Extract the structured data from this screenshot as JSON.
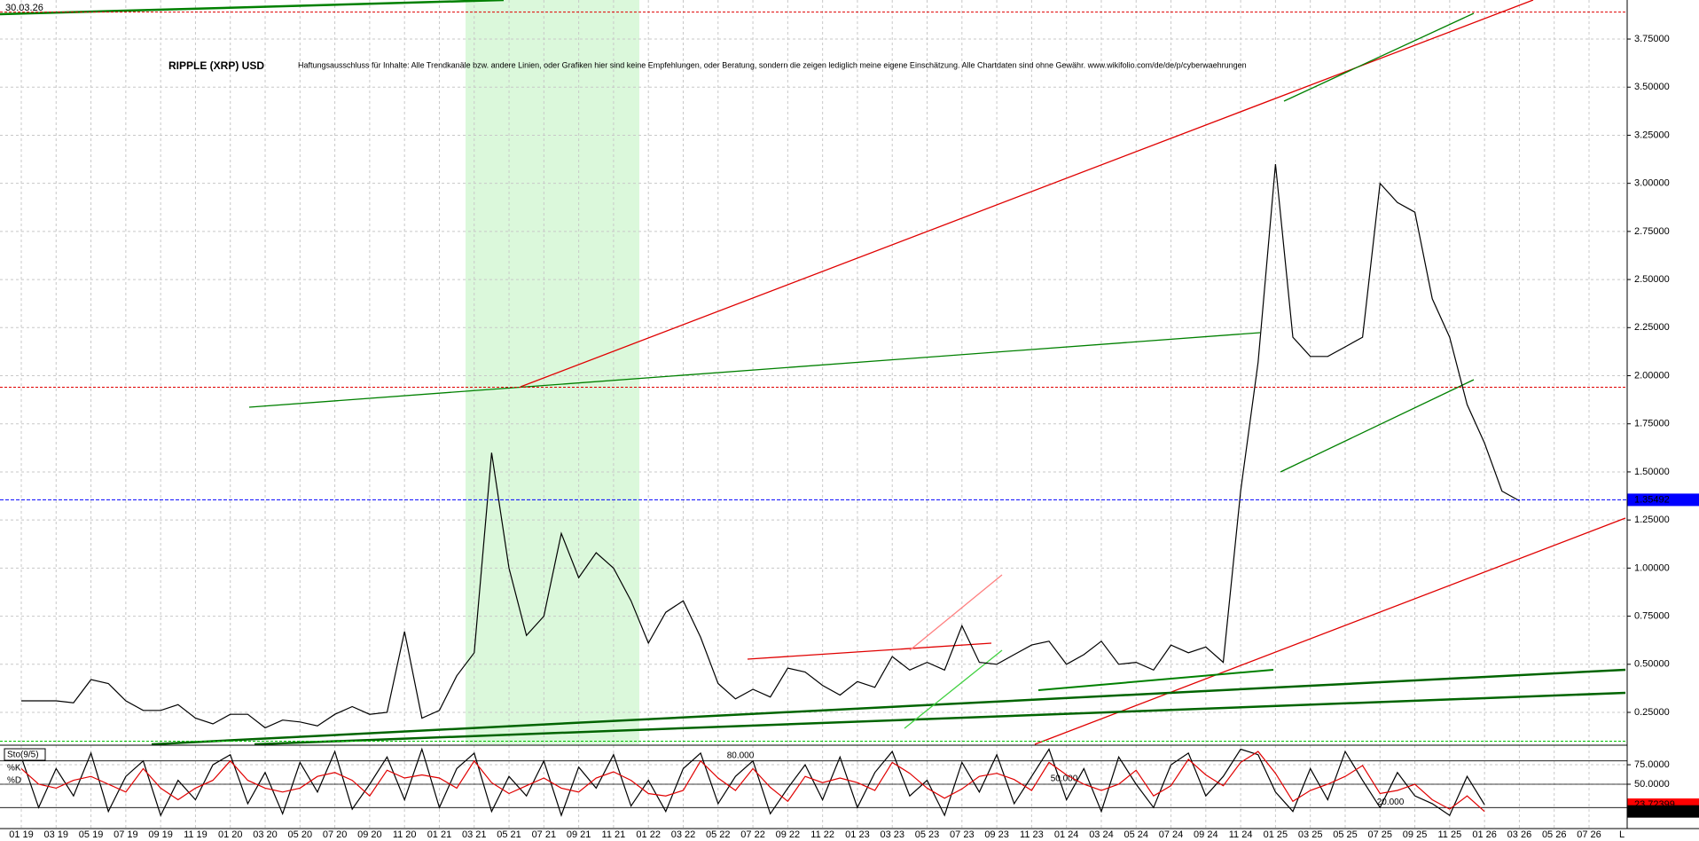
{
  "chart_data": [
    {
      "type": "line",
      "title": "RIPPLE (XRP) USD",
      "subtitle": "Haftungsausschluss für Inhalte: Alle Trendkanäle bzw. andere Linien, oder Grafiken hier sind keine Empfehlungen, oder Beratung, sondern die zeigen lediglich meine eigene Einschätzung. Alle Chartdaten sind ohne Gewähr. www.wikifolio.com/de/de/p/cyberwaehrungen",
      "timestamp": "30.03.26",
      "x_end_label": "L",
      "categories": [
        "01 19",
        null,
        "03 19",
        null,
        "05 19",
        null,
        "07 19",
        null,
        "09 19",
        null,
        "11 19",
        null,
        "01 20",
        null,
        "03 20",
        null,
        "05 20",
        null,
        "07 20",
        null,
        "09 20",
        null,
        "11 20",
        null,
        "01 21",
        null,
        "03 21",
        null,
        "05 21",
        null,
        "07 21",
        null,
        "09 21",
        null,
        "11 21",
        null,
        "01 22",
        null,
        "03 22",
        null,
        "05 22",
        null,
        "07 22",
        null,
        "09 22",
        null,
        "11 22",
        null,
        "01 23",
        null,
        "03 23",
        null,
        "05 23",
        null,
        "07 23",
        null,
        "09 23",
        null,
        "11 23",
        null,
        "01 24",
        null,
        "03 24",
        null,
        "05 24",
        null,
        "07 24",
        null,
        "09 24",
        null,
        "11 24",
        null,
        "01 25",
        null,
        "03 25",
        null,
        "05 25",
        null,
        "07 25",
        null,
        "09 25",
        null,
        "11 25",
        null,
        "01 26",
        null,
        "03 26",
        null,
        "05 26",
        null,
        "07 26"
      ],
      "series": [
        {
          "name": "XRP",
          "color": "#000000",
          "values": [
            0.31,
            0.31,
            0.31,
            0.3,
            0.42,
            0.4,
            0.31,
            0.26,
            0.26,
            0.29,
            0.22,
            0.19,
            0.24,
            0.24,
            0.17,
            0.21,
            0.2,
            0.18,
            0.24,
            0.28,
            0.24,
            0.25,
            0.67,
            0.22,
            0.26,
            0.44,
            0.56,
            1.6,
            1.0,
            0.65,
            0.75,
            1.18,
            0.95,
            1.08,
            1.0,
            0.83,
            0.61,
            0.77,
            0.83,
            0.64,
            0.4,
            0.32,
            0.37,
            0.33,
            0.48,
            0.46,
            0.39,
            0.34,
            0.41,
            0.38,
            0.54,
            0.47,
            0.51,
            0.47,
            0.7,
            0.51,
            0.5,
            0.55,
            0.6,
            0.62,
            0.5,
            0.55,
            0.62,
            0.5,
            0.51,
            0.47,
            0.6,
            0.56,
            0.59,
            0.51,
            1.4,
            2.07,
            3.1,
            2.2,
            2.1,
            2.1,
            2.15,
            2.2,
            3.0,
            2.9,
            2.85,
            2.4,
            2.2,
            1.85,
            1.65,
            1.4,
            1.35,
            null,
            null,
            null,
            null
          ]
        }
      ],
      "last_price": 1.35492,
      "last_price_color": "#0000ff",
      "hlines": [
        {
          "value": 3.89,
          "color": "#e00000"
        },
        {
          "value": 1.94,
          "color": "#e00000"
        },
        {
          "value": 0.1,
          "color": "#00c000"
        }
      ],
      "ylim": [
        0.084,
        3.953
      ],
      "yticks": [
        {
          "value": 0.25,
          "label": "0.25000"
        },
        {
          "value": 0.5,
          "label": "0.50000"
        },
        {
          "value": 0.75,
          "label": "0.75000"
        },
        {
          "value": 1.0,
          "label": "1.00000"
        },
        {
          "value": 1.25,
          "label": "1.25000"
        },
        {
          "value": 1.5,
          "label": "1.50000"
        },
        {
          "value": 1.75,
          "label": "1.75000"
        },
        {
          "value": 2.0,
          "label": "2.00000"
        },
        {
          "value": 2.25,
          "label": "2.25000"
        },
        {
          "value": 2.5,
          "label": "2.50000"
        },
        {
          "value": 2.75,
          "label": "2.75000"
        },
        {
          "value": 3.0,
          "label": "3.00000"
        },
        {
          "value": 3.25,
          "label": "3.25000"
        },
        {
          "value": 3.5,
          "label": "3.50000"
        },
        {
          "value": 3.75,
          "label": "3.75000"
        }
      ],
      "grid": true
    },
    {
      "type": "line",
      "title": "Sto(9/5)",
      "series": [
        {
          "name": "%K",
          "color": "#000000",
          "values": [
            85,
            20,
            70,
            35,
            90,
            15,
            60,
            80,
            10,
            55,
            30,
            75,
            88,
            25,
            65,
            12,
            78,
            40,
            92,
            18,
            50,
            85,
            30,
            95,
            20,
            70,
            90,
            15,
            60,
            35,
            80,
            10,
            72,
            45,
            88,
            22,
            55,
            15,
            70,
            90,
            25,
            60,
            80,
            12,
            45,
            75,
            30,
            85,
            20,
            65,
            92,
            35,
            55,
            10,
            78,
            40,
            88,
            25,
            60,
            95,
            30,
            70,
            15,
            85,
            50,
            20,
            75,
            90,
            35,
            60,
            95,
            88,
            40,
            15,
            70,
            30,
            92,
            55,
            20,
            65,
            35,
            25,
            10,
            60,
            23.72399,
            null,
            null,
            null,
            null
          ]
        },
        {
          "name": "%D",
          "color": "#e00000",
          "values": [
            70,
            50,
            45,
            55,
            60,
            50,
            40,
            70,
            45,
            30,
            45,
            55,
            80,
            55,
            45,
            40,
            45,
            60,
            65,
            55,
            35,
            68,
            58,
            62,
            58,
            45,
            80,
            52,
            38,
            48,
            58,
            45,
            40,
            58,
            66,
            55,
            38,
            35,
            42,
            80,
            58,
            42,
            70,
            46,
            28,
            60,
            52,
            58,
            52,
            42,
            78,
            64,
            45,
            32,
            44,
            60,
            64,
            56,
            42,
            78,
            62,
            50,
            42,
            50,
            68,
            35,
            48,
            82,
            62,
            48,
            78,
            92,
            64,
            28,
            42,
            50,
            60,
            74,
            38,
            42,
            50,
            30,
            18,
            35,
            15.04885,
            null,
            null,
            null,
            null
          ]
        }
      ],
      "levels": [
        {
          "value": 80,
          "label": "80.000"
        },
        {
          "value": 50,
          "label": "50.000"
        },
        {
          "value": 20,
          "label": "20.000"
        }
      ],
      "ylim": [
        -7,
        99
      ],
      "yticks": [
        {
          "value": 50,
          "label": "50.0000"
        },
        {
          "value": 75,
          "label": "75.0000"
        }
      ],
      "grid": true
    }
  ]
}
